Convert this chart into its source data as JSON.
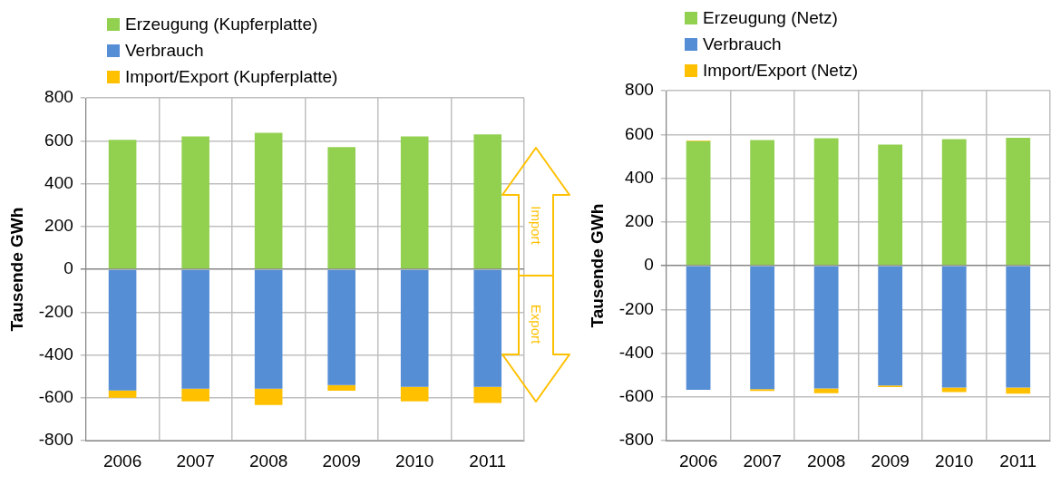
{
  "chart_data": [
    {
      "type": "bar",
      "stacked": true,
      "ylabel": "Tausende GWh",
      "categories": [
        "2006",
        "2007",
        "2008",
        "2009",
        "2010",
        "2011"
      ],
      "series": [
        {
          "name": "Erzeugung (Kupferplatte)",
          "color": "#92d050",
          "values": [
            604,
            620,
            637,
            570,
            620,
            630
          ]
        },
        {
          "name": "Verbrauch",
          "color": "#558ed5",
          "values": [
            -565,
            -557,
            -557,
            -540,
            -549,
            -549
          ]
        },
        {
          "name": "Import/Export (Kupferplatte)",
          "color": "#ffc000",
          "values": [
            -34,
            -59,
            -76,
            -26,
            -67,
            -75
          ]
        }
      ],
      "ylim": [
        -800,
        800
      ],
      "yticks": [
        -800,
        -600,
        -400,
        -200,
        0,
        200,
        400,
        600,
        800
      ],
      "grid": true,
      "legend": "top left",
      "annotations": [
        "Import",
        "Export"
      ]
    },
    {
      "type": "bar",
      "stacked": true,
      "ylabel": "Tausende GWh",
      "categories": [
        "2006",
        "2007",
        "2008",
        "2009",
        "2010",
        "2011"
      ],
      "series": [
        {
          "name": "Erzeugung (Netz)",
          "color": "#92d050",
          "values": [
            569,
            574,
            582,
            554,
            578,
            585
          ]
        },
        {
          "name": "Verbrauch",
          "color": "#558ed5",
          "values": [
            -567,
            -564,
            -561,
            -548,
            -557,
            -557
          ]
        },
        {
          "name": "Import/Export (Netz)",
          "color": "#ffc000",
          "values": [
            3,
            -8,
            -22,
            -7,
            -21,
            -28
          ]
        }
      ],
      "ylim": [
        -800,
        800
      ],
      "yticks": [
        -800,
        -600,
        -400,
        -200,
        0,
        200,
        400,
        600,
        800
      ],
      "grid": true,
      "legend": "top left"
    }
  ]
}
